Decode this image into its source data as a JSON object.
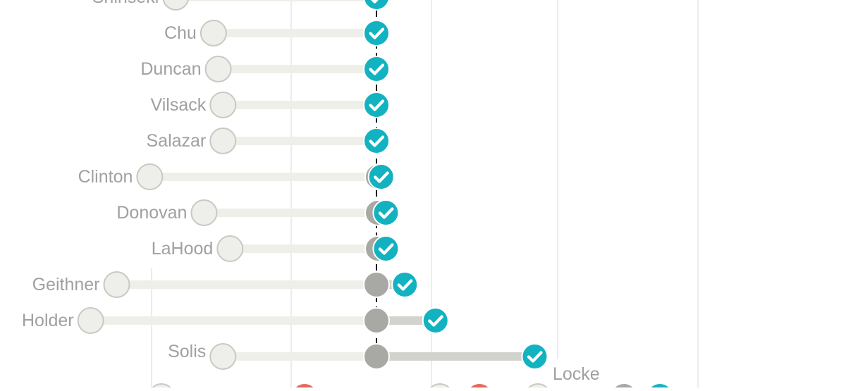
{
  "chart_data": {
    "type": "dot-range",
    "colors": {
      "start_dot": "#eeeeea",
      "start_stroke": "#c9c9c3",
      "bar_light": "#efefea",
      "bar_dark": "#d3d3ce",
      "midpoint_dot": "#a8a8a4",
      "confirmed": "#13b2c0",
      "label": "#a0a0a0",
      "grid": "#d9d9d9",
      "reference_line": "#111111",
      "rejected": "#e8675a"
    },
    "rows": [
      {
        "name": "Shinseki",
        "start": -85,
        "end": 0
      },
      {
        "name": "Chu",
        "start": -69,
        "end": 0
      },
      {
        "name": "Duncan",
        "start": -67,
        "end": 0
      },
      {
        "name": "Vilsack",
        "start": -65,
        "end": 0
      },
      {
        "name": "Salazar",
        "start": -65,
        "end": 0
      },
      {
        "name": "Clinton",
        "start": -96,
        "end": 2
      },
      {
        "name": "Donovan",
        "start": -73,
        "end": 4
      },
      {
        "name": "LaHood",
        "start": -62,
        "end": 4
      },
      {
        "name": "Geithner",
        "start": -110,
        "end": 12,
        "midpoint": 0
      },
      {
        "name": "Holder",
        "start": -121,
        "end": 25,
        "midpoint": 0
      },
      {
        "name": "Solis",
        "start": -65,
        "end": 67,
        "midpoint": 0
      },
      {
        "name": "Locke"
      }
    ],
    "icons": [
      "check-icon"
    ]
  }
}
